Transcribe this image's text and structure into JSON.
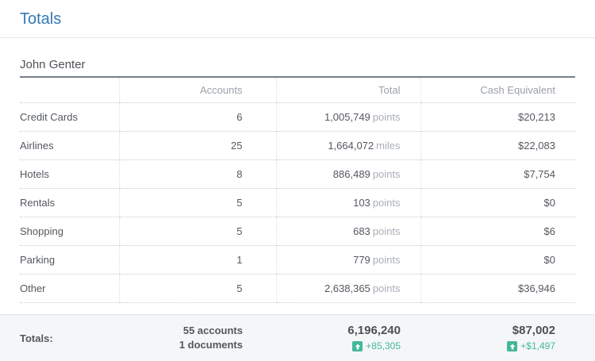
{
  "page": {
    "title": "Totals"
  },
  "section": {
    "owner": "John Genter"
  },
  "table": {
    "columns": {
      "category": "",
      "accounts": "Accounts",
      "total": "Total",
      "cash": "Cash Equivalent"
    },
    "rows": [
      {
        "category": "Credit Cards",
        "accounts": "6",
        "total": "1,005,749",
        "unit": "points",
        "cash": "$20,213"
      },
      {
        "category": "Airlines",
        "accounts": "25",
        "total": "1,664,072",
        "unit": "miles",
        "cash": "$22,083"
      },
      {
        "category": "Hotels",
        "accounts": "8",
        "total": "886,489",
        "unit": "points",
        "cash": "$7,754"
      },
      {
        "category": "Rentals",
        "accounts": "5",
        "total": "103",
        "unit": "points",
        "cash": "$0"
      },
      {
        "category": "Shopping",
        "accounts": "5",
        "total": "683",
        "unit": "points",
        "cash": "$6"
      },
      {
        "category": "Parking",
        "accounts": "1",
        "total": "779",
        "unit": "points",
        "cash": "$0"
      },
      {
        "category": "Other",
        "accounts": "5",
        "total": "2,638,365",
        "unit": "points",
        "cash": "$36,946"
      }
    ],
    "footer": {
      "label": "Totals:",
      "accounts_line1": "55 accounts",
      "accounts_line2": "1 documents",
      "total_value": "6,196,240",
      "total_delta": "+85,305",
      "cash_value": "$87,002",
      "cash_delta": "+$1,497"
    }
  },
  "colors": {
    "title_blue": "#337ab7",
    "positive_green": "#45b79a",
    "footer_bottom_border": "#2d3842"
  }
}
